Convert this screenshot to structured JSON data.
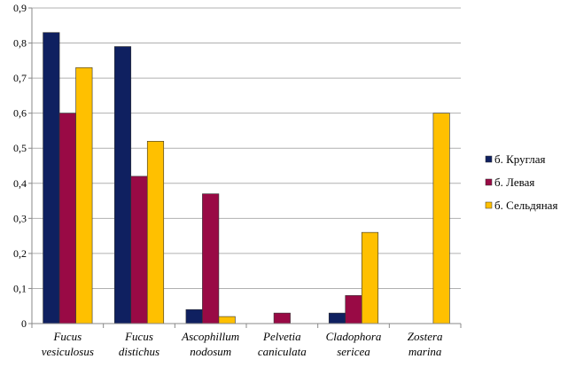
{
  "chart_data": {
    "type": "bar",
    "categories": [
      [
        "Fucus",
        "vesiculosus"
      ],
      [
        "Fucus",
        "distichus"
      ],
      [
        "Ascophillum",
        "nodosum"
      ],
      [
        "Pelvetia",
        "caniculata"
      ],
      [
        "Cladophora",
        "sericea"
      ],
      [
        "Zostera",
        "marina"
      ]
    ],
    "series": [
      {
        "name": "б. Круглая",
        "color": "#0f2060",
        "values": [
          0.83,
          0.79,
          0.04,
          0,
          0.03,
          0
        ]
      },
      {
        "name": "б. Левая",
        "color": "#990a45",
        "values": [
          0.6,
          0.42,
          0.37,
          0.03,
          0.08,
          0
        ]
      },
      {
        "name": "б. Сельдяная",
        "color": "#ffc000",
        "values": [
          0.73,
          0.52,
          0.02,
          0,
          0.26,
          0.6
        ]
      }
    ],
    "ylim": [
      0,
      0.9
    ],
    "yticks": [
      "0",
      "0,1",
      "0,2",
      "0,3",
      "0,4",
      "0,5",
      "0,6",
      "0,7",
      "0,8",
      "0,9"
    ],
    "grid": "horizontal",
    "legend": "right",
    "xlabel": "",
    "ylabel": "",
    "title": ""
  }
}
